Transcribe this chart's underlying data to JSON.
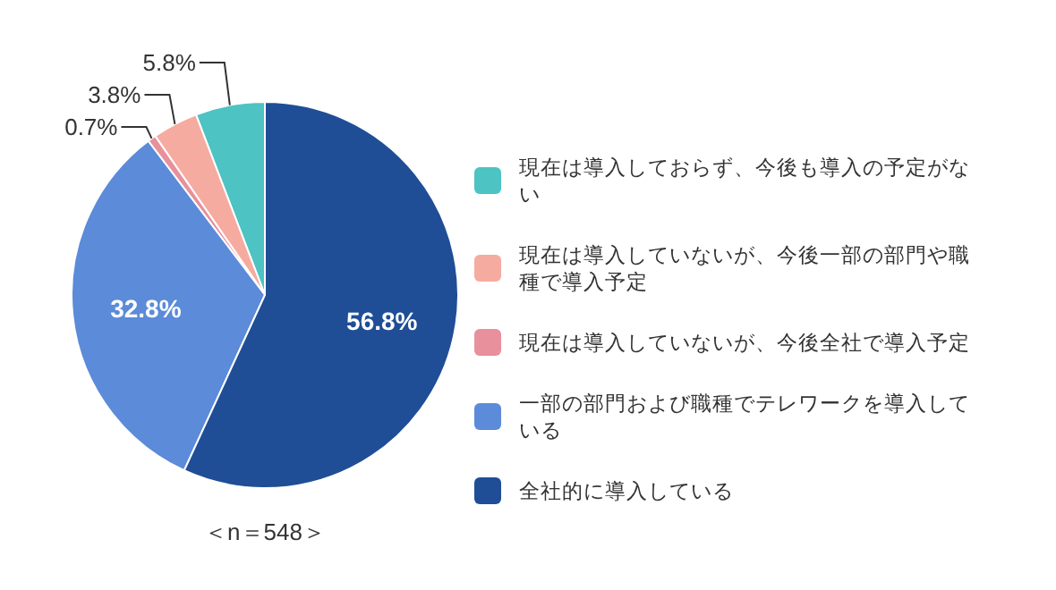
{
  "chart_data": {
    "type": "pie",
    "categories": [
      "現在は導入しておらず、今後も導入の予定がない",
      "現在は導入していないが、今後一部の部門や職種で導入予定",
      "現在は導入していないが、今後全社で導入予定",
      "一部の部門および職種でテレワークを導入している",
      "全社的に導入している"
    ],
    "values": [
      5.8,
      3.8,
      0.7,
      32.8,
      56.8
    ],
    "colors": [
      "#4dc3c3",
      "#f6aba0",
      "#e8909c",
      "#5b8bd9",
      "#1f4e96"
    ],
    "value_labels": [
      "5.8%",
      "3.8%",
      "0.7%",
      "32.8%",
      "56.8%"
    ],
    "legend": "right",
    "annotations": [
      "＜n＝548＞"
    ]
  }
}
